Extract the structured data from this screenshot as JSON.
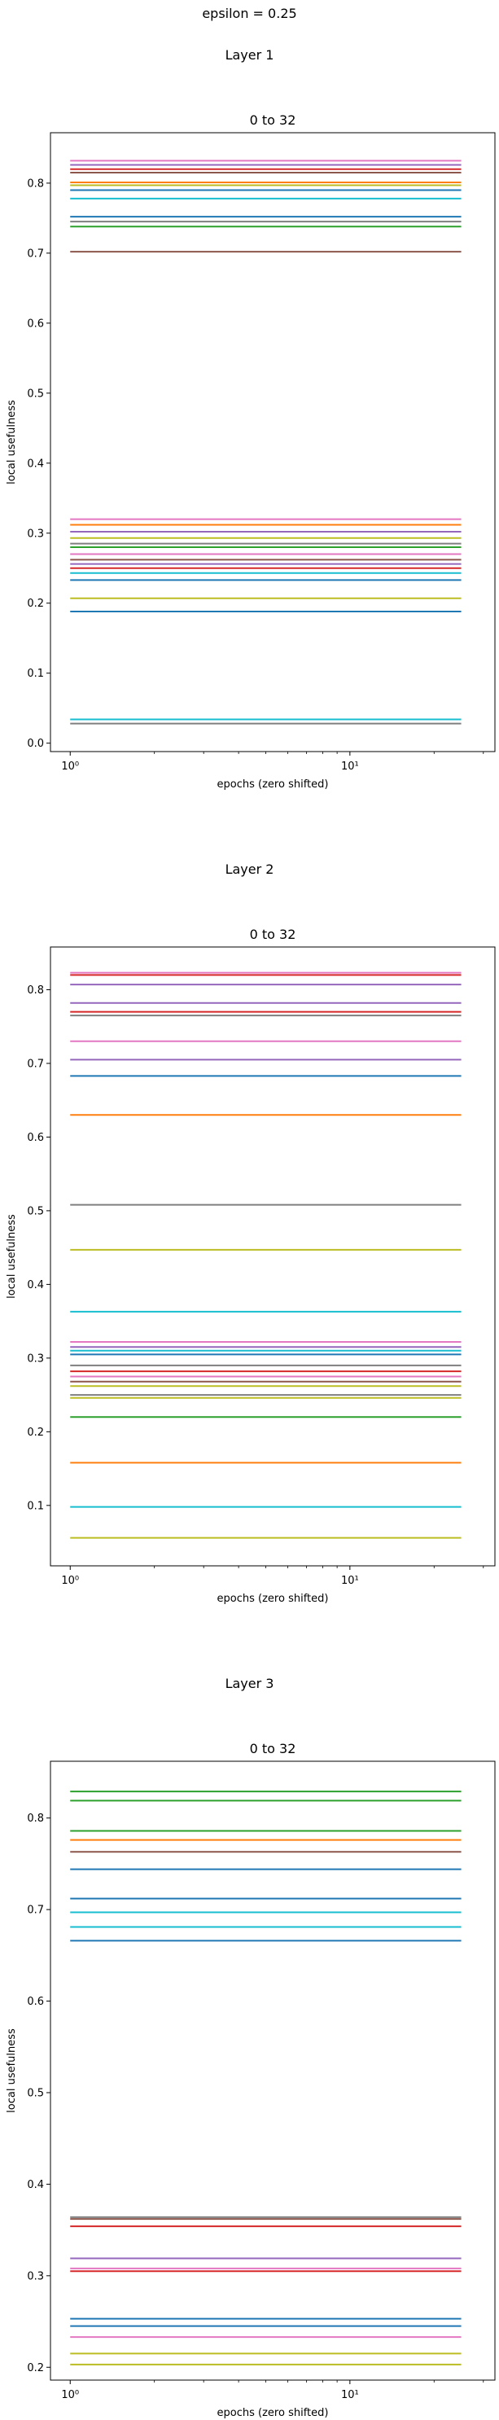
{
  "figure": {
    "suptitle": "epsilon = 0.25"
  },
  "chart_data": [
    {
      "type": "line",
      "panel_title": "Layer 1",
      "title": "0 to 32",
      "xlabel": "epochs (zero shifted)",
      "ylabel": "local usefulness",
      "xscale": "log",
      "xlim": [
        0.85,
        33
      ],
      "x_range": [
        1,
        25
      ],
      "ylim": [
        -0.012,
        0.872
      ],
      "yticks": [
        0.0,
        0.1,
        0.2,
        0.3,
        0.4,
        0.5,
        0.6,
        0.7,
        0.8
      ],
      "ytick_labels": [
        "0.0",
        "0.1",
        "0.2",
        "0.3",
        "0.4",
        "0.5",
        "0.6",
        "0.7",
        "0.8"
      ],
      "xticks": [
        1,
        10
      ],
      "xtick_labels": [
        "10⁰",
        "10¹"
      ],
      "grid": false,
      "series": [
        {
          "color": "#e377c2",
          "values": [
            0.832
          ]
        },
        {
          "color": "#9467bd",
          "values": [
            0.826
          ]
        },
        {
          "color": "#d62728",
          "values": [
            0.82
          ]
        },
        {
          "color": "#8c564b",
          "values": [
            0.815
          ]
        },
        {
          "color": "#ff7f0e",
          "values": [
            0.801
          ]
        },
        {
          "color": "#bcbd22",
          "values": [
            0.797
          ]
        },
        {
          "color": "#1f77b4",
          "values": [
            0.79
          ]
        },
        {
          "color": "#17becf",
          "values": [
            0.778
          ]
        },
        {
          "color": "#1f77b4",
          "values": [
            0.752
          ]
        },
        {
          "color": "#7f7f7f",
          "values": [
            0.745
          ]
        },
        {
          "color": "#2ca02c",
          "values": [
            0.738
          ]
        },
        {
          "color": "#8c564b",
          "values": [
            0.702
          ]
        },
        {
          "color": "#e377c2",
          "values": [
            0.32
          ]
        },
        {
          "color": "#ff7f0e",
          "values": [
            0.312
          ]
        },
        {
          "color": "#9467bd",
          "values": [
            0.302
          ]
        },
        {
          "color": "#bcbd22",
          "values": [
            0.293
          ]
        },
        {
          "color": "#7f7f7f",
          "values": [
            0.285
          ]
        },
        {
          "color": "#2ca02c",
          "values": [
            0.28
          ]
        },
        {
          "color": "#e377c2",
          "values": [
            0.27
          ]
        },
        {
          "color": "#8c564b",
          "values": [
            0.262
          ]
        },
        {
          "color": "#9467bd",
          "values": [
            0.256
          ]
        },
        {
          "color": "#d62728",
          "values": [
            0.25
          ]
        },
        {
          "color": "#17becf",
          "values": [
            0.243
          ]
        },
        {
          "color": "#1f77b4",
          "values": [
            0.233
          ]
        },
        {
          "color": "#bcbd22",
          "values": [
            0.207
          ]
        },
        {
          "color": "#1f77b4",
          "values": [
            0.188
          ]
        },
        {
          "color": "#17becf",
          "values": [
            0.034
          ]
        },
        {
          "color": "#7f7f7f",
          "values": [
            0.028
          ]
        }
      ]
    },
    {
      "type": "line",
      "panel_title": "Layer 2",
      "title": "0 to 32",
      "xlabel": "epochs (zero shifted)",
      "ylabel": "local usefulness",
      "xscale": "log",
      "xlim": [
        0.85,
        33
      ],
      "x_range": [
        1,
        25
      ],
      "ylim": [
        0.018,
        0.858
      ],
      "yticks": [
        0.1,
        0.2,
        0.3,
        0.4,
        0.5,
        0.6,
        0.7,
        0.8
      ],
      "ytick_labels": [
        "0.1",
        "0.2",
        "0.3",
        "0.4",
        "0.5",
        "0.6",
        "0.7",
        "0.8"
      ],
      "xticks": [
        1,
        10
      ],
      "xtick_labels": [
        "10⁰",
        "10¹"
      ],
      "grid": false,
      "series": [
        {
          "color": "#e377c2",
          "values": [
            0.823
          ]
        },
        {
          "color": "#d62728",
          "values": [
            0.82
          ]
        },
        {
          "color": "#9467bd",
          "values": [
            0.807
          ]
        },
        {
          "color": "#9467bd",
          "values": [
            0.782
          ]
        },
        {
          "color": "#d62728",
          "values": [
            0.77
          ]
        },
        {
          "color": "#7f7f7f",
          "values": [
            0.765
          ]
        },
        {
          "color": "#e377c2",
          "values": [
            0.73
          ]
        },
        {
          "color": "#9467bd",
          "values": [
            0.705
          ]
        },
        {
          "color": "#1f77b4",
          "values": [
            0.683
          ]
        },
        {
          "color": "#ff7f0e",
          "values": [
            0.63
          ]
        },
        {
          "color": "#7f7f7f",
          "values": [
            0.508
          ]
        },
        {
          "color": "#bcbd22",
          "values": [
            0.447
          ]
        },
        {
          "color": "#17becf",
          "values": [
            0.363
          ]
        },
        {
          "color": "#e377c2",
          "values": [
            0.322
          ]
        },
        {
          "color": "#9467bd",
          "values": [
            0.315
          ]
        },
        {
          "color": "#17becf",
          "values": [
            0.31
          ]
        },
        {
          "color": "#1f77b4",
          "values": [
            0.305
          ]
        },
        {
          "color": "#7f7f7f",
          "values": [
            0.29
          ]
        },
        {
          "color": "#d62728",
          "values": [
            0.282
          ]
        },
        {
          "color": "#e377c2",
          "values": [
            0.275
          ]
        },
        {
          "color": "#8c564b",
          "values": [
            0.268
          ]
        },
        {
          "color": "#bcbd22",
          "values": [
            0.262
          ]
        },
        {
          "color": "#7f7f7f",
          "values": [
            0.25
          ]
        },
        {
          "color": "#bcbd22",
          "values": [
            0.246
          ]
        },
        {
          "color": "#2ca02c",
          "values": [
            0.22
          ]
        },
        {
          "color": "#ff7f0e",
          "values": [
            0.158
          ]
        },
        {
          "color": "#17becf",
          "values": [
            0.098
          ]
        },
        {
          "color": "#bcbd22",
          "values": [
            0.056
          ]
        }
      ]
    },
    {
      "type": "line",
      "panel_title": "Layer 3",
      "title": "0 to 32",
      "xlabel": "epochs (zero shifted)",
      "ylabel": "local usefulness",
      "xscale": "log",
      "xlim": [
        0.85,
        33
      ],
      "x_range": [
        1,
        25
      ],
      "ylim": [
        0.186,
        0.862
      ],
      "yticks": [
        0.2,
        0.3,
        0.4,
        0.5,
        0.6,
        0.7,
        0.8
      ],
      "ytick_labels": [
        "0.2",
        "0.3",
        "0.4",
        "0.5",
        "0.6",
        "0.7",
        "0.8"
      ],
      "xticks": [
        1,
        10
      ],
      "xtick_labels": [
        "10⁰",
        "10¹"
      ],
      "grid": false,
      "series": [
        {
          "color": "#2ca02c",
          "values": [
            0.829
          ]
        },
        {
          "color": "#2ca02c",
          "values": [
            0.819
          ]
        },
        {
          "color": "#2ca02c",
          "values": [
            0.786
          ]
        },
        {
          "color": "#ff7f0e",
          "values": [
            0.776
          ]
        },
        {
          "color": "#8c564b",
          "values": [
            0.763
          ]
        },
        {
          "color": "#1f77b4",
          "values": [
            0.744
          ]
        },
        {
          "color": "#1f77b4",
          "values": [
            0.712
          ]
        },
        {
          "color": "#17becf",
          "values": [
            0.697
          ]
        },
        {
          "color": "#17becf",
          "values": [
            0.681
          ]
        },
        {
          "color": "#1f77b4",
          "values": [
            0.666
          ]
        },
        {
          "color": "#7f7f7f",
          "values": [
            0.364
          ]
        },
        {
          "color": "#8c564b",
          "values": [
            0.362
          ]
        },
        {
          "color": "#d62728",
          "values": [
            0.354
          ]
        },
        {
          "color": "#9467bd",
          "values": [
            0.319
          ]
        },
        {
          "color": "#e377c2",
          "values": [
            0.308
          ]
        },
        {
          "color": "#d62728",
          "values": [
            0.305
          ]
        },
        {
          "color": "#1f77b4",
          "values": [
            0.253
          ]
        },
        {
          "color": "#1f77b4",
          "values": [
            0.245
          ]
        },
        {
          "color": "#e377c2",
          "values": [
            0.233
          ]
        },
        {
          "color": "#bcbd22",
          "values": [
            0.215
          ]
        },
        {
          "color": "#bcbd22",
          "values": [
            0.203
          ]
        }
      ]
    }
  ]
}
